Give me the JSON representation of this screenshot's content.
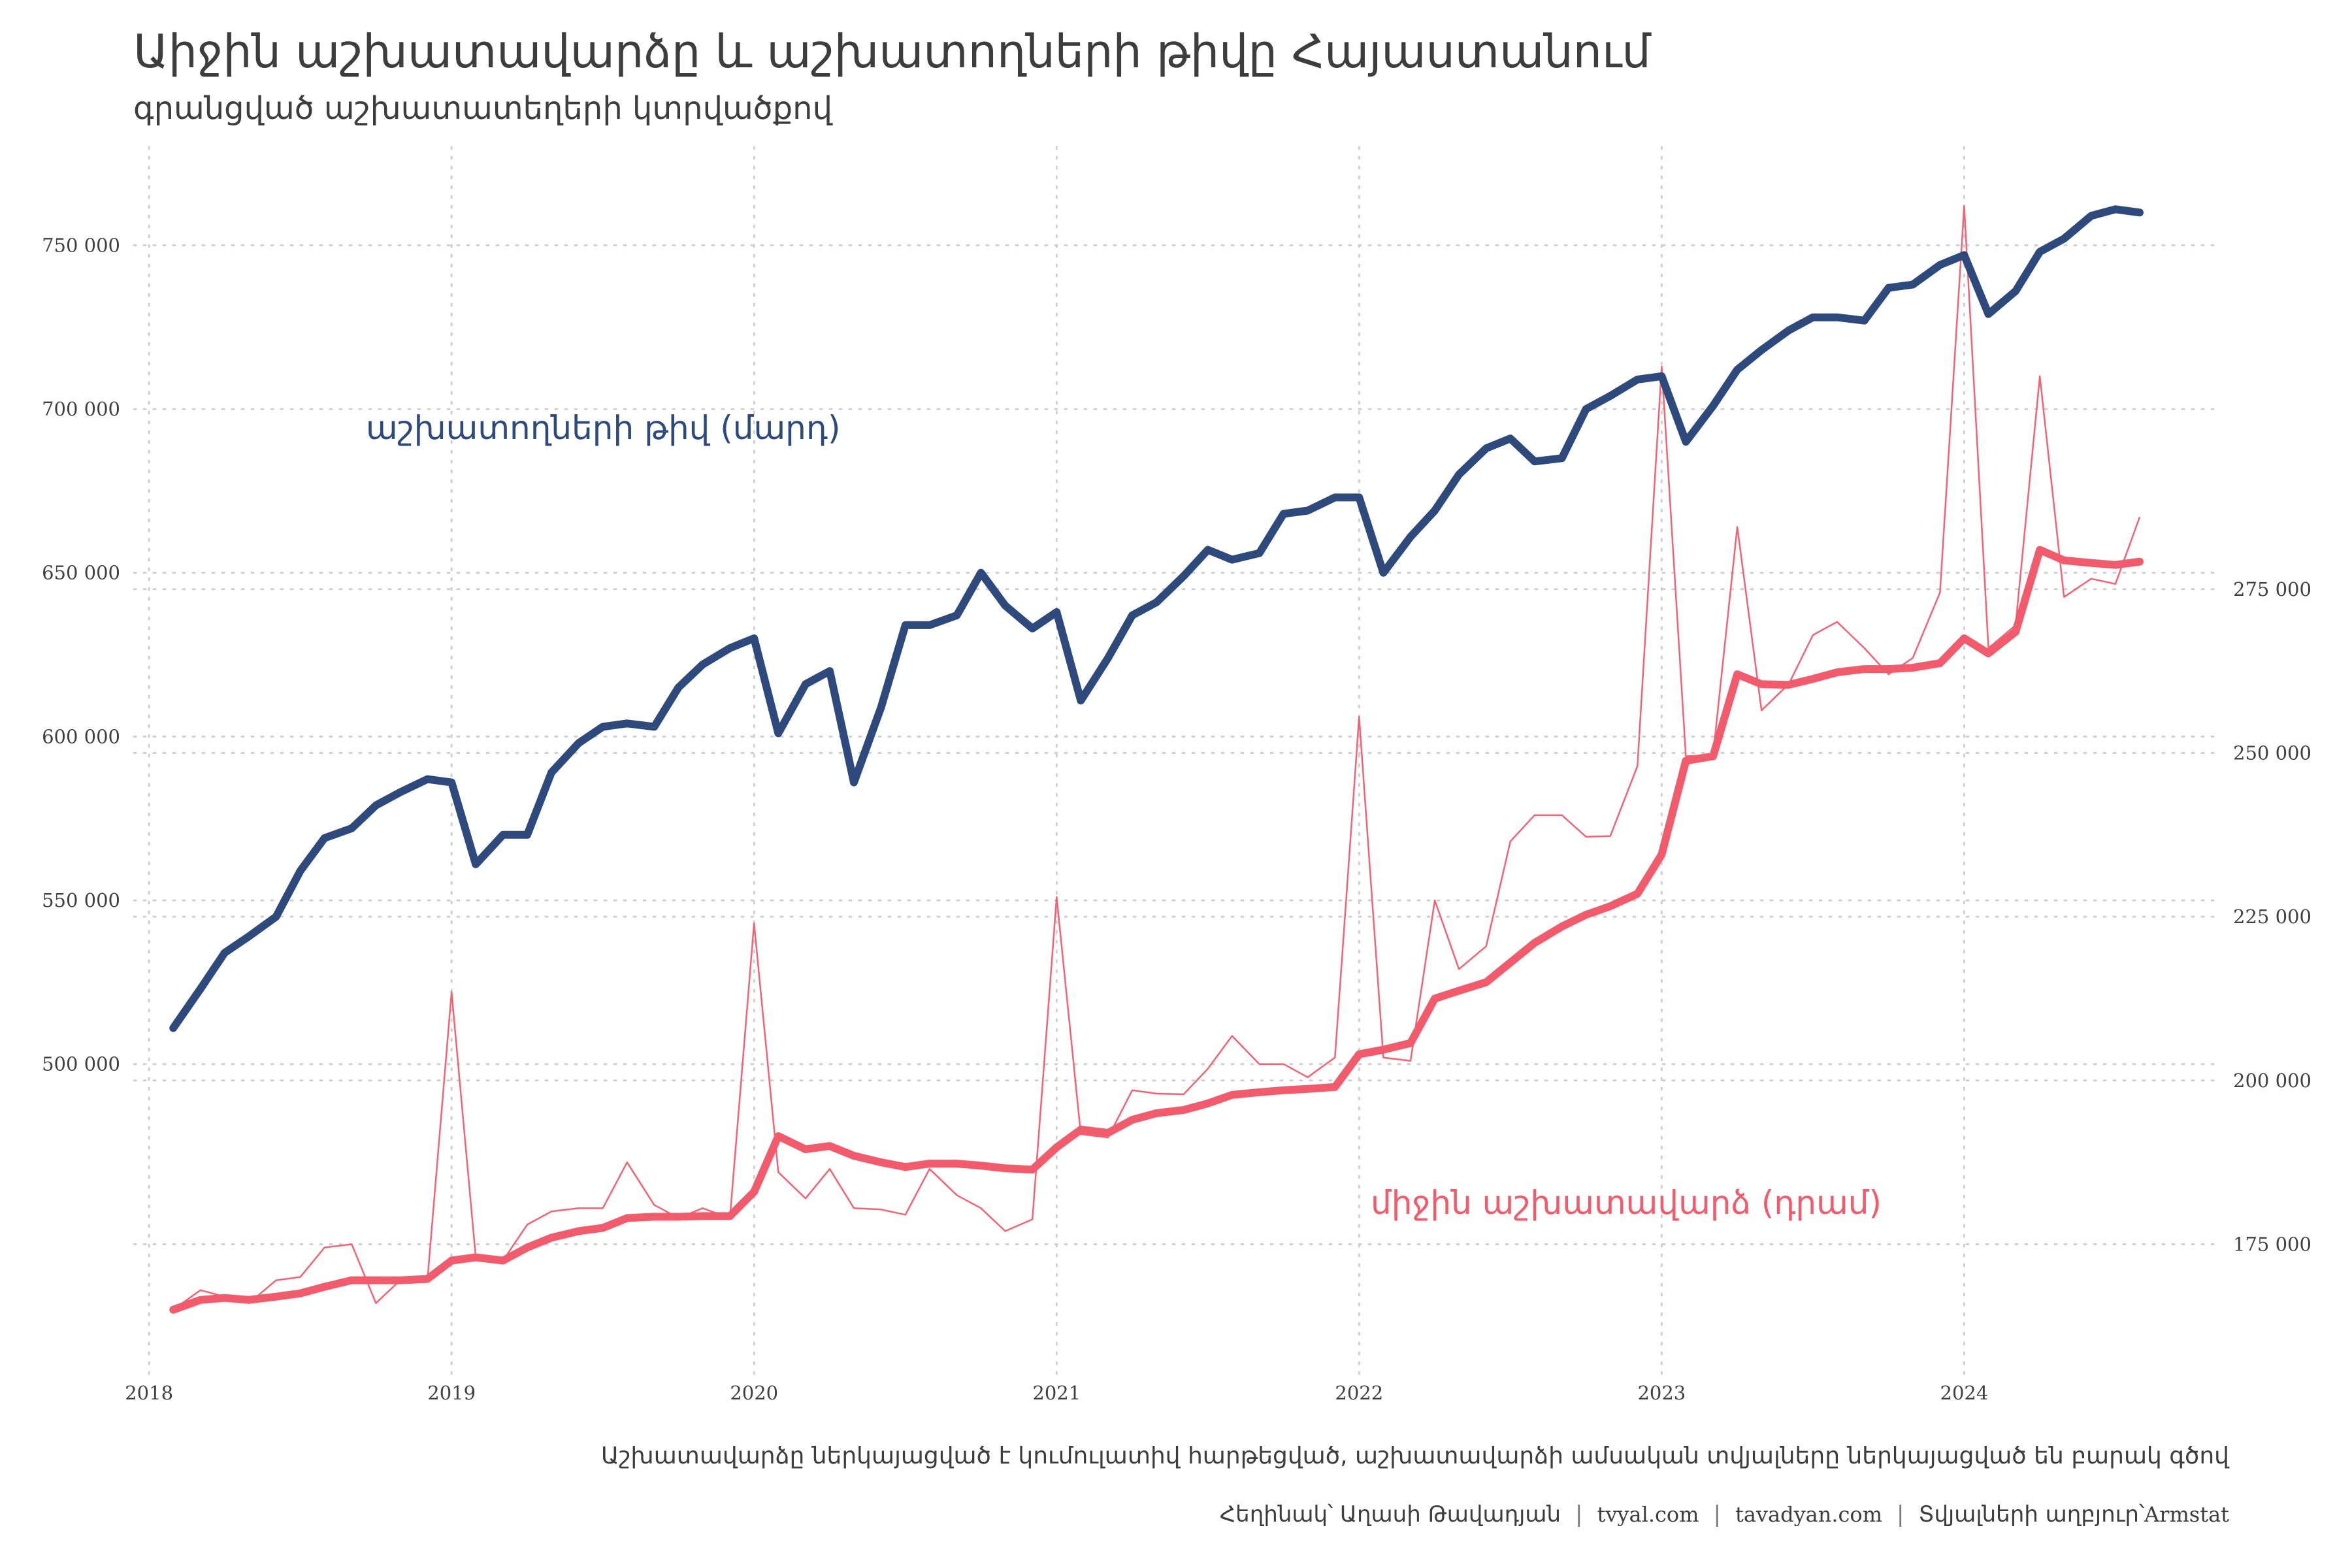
{
  "title": "Աիջին աշխատավարձը և աշխատողների թիվը Հայաստանում",
  "subtitle": "գրանցված աշխատատեղերի կտրվածքով",
  "caption": "Աշխատավարձը ներկայացված է կումուլատիվ հարթեցված, աշխատավարձի ամսական տվյալները ներկայացված են բարակ գծով",
  "credits": {
    "author": "Հեղինակ՝ Աղասի Թավադյան",
    "site1": "tvyal.com",
    "site2": "tavadyan.com",
    "source_label": "Տվյալների աղբյուր՝",
    "source_name": "Armstat",
    "separator": "|"
  },
  "colors": {
    "employees": "#2e4a7d",
    "wage": "#f25b6b",
    "grid": "#cfcfcf",
    "text": "#3d3d3d"
  },
  "chart_data": {
    "type": "line",
    "x_unit": "year (monthly observations)",
    "x_ticks": [
      "2018",
      "2019",
      "2020",
      "2021",
      "2022",
      "2023",
      "2024"
    ],
    "xlim": [
      2017.95,
      2024.85
    ],
    "y_left": {
      "ticks": [
        "500 000",
        "550 000",
        "600 000",
        "650 000",
        "700 000",
        "750 000"
      ],
      "tick_values": [
        500000,
        550000,
        600000,
        650000,
        700000,
        750000
      ],
      "lim": [
        405000,
        780000
      ]
    },
    "y_right": {
      "ticks": [
        "175 000",
        "200 000",
        "225 000",
        "250 000",
        "275 000"
      ],
      "tick_values": [
        175000,
        200000,
        225000,
        250000,
        275000
      ],
      "lim": [
        155000,
        342500
      ]
    },
    "grid": true,
    "legend": "direct labels",
    "series": [
      {
        "name": "աշխատողների թիվ (մարդ)",
        "axis": "left",
        "style": "thick",
        "x": [
          2018.08,
          2018.17,
          2018.25,
          2018.33,
          2018.42,
          2018.5,
          2018.58,
          2018.67,
          2018.75,
          2018.83,
          2018.92,
          2019.0,
          2019.08,
          2019.17,
          2019.25,
          2019.33,
          2019.42,
          2019.5,
          2019.58,
          2019.67,
          2019.75,
          2019.83,
          2019.92,
          2020.0,
          2020.08,
          2020.17,
          2020.25,
          2020.33,
          2020.42,
          2020.5,
          2020.58,
          2020.67,
          2020.75,
          2020.83,
          2020.92,
          2021.0,
          2021.08,
          2021.17,
          2021.25,
          2021.33,
          2021.42,
          2021.5,
          2021.58,
          2021.67,
          2021.75,
          2021.83,
          2021.92,
          2022.0,
          2022.08,
          2022.17,
          2022.25,
          2022.33,
          2022.42,
          2022.5,
          2022.58,
          2022.67,
          2022.75,
          2022.83,
          2022.92,
          2023.0,
          2023.08,
          2023.17,
          2023.25,
          2023.33,
          2023.42,
          2023.5,
          2023.58,
          2023.67,
          2023.75,
          2023.83,
          2023.92,
          2024.0,
          2024.08,
          2024.17,
          2024.25,
          2024.33,
          2024.42,
          2024.5,
          2024.58
        ],
        "values": [
          511000,
          523000,
          534000,
          539000,
          545000,
          559000,
          569000,
          572000,
          579000,
          583000,
          587000,
          586000,
          561000,
          570000,
          570000,
          589000,
          598000,
          603000,
          604000,
          603000,
          615000,
          622000,
          627000,
          630000,
          601000,
          616000,
          620000,
          586000,
          609000,
          634000,
          634000,
          637000,
          650000,
          640000,
          633000,
          638000,
          611000,
          624000,
          637000,
          641000,
          649000,
          657000,
          654000,
          656000,
          668000,
          669000,
          673000,
          673000,
          650000,
          661000,
          669000,
          680000,
          688000,
          691000,
          684000,
          685000,
          700000,
          704000,
          709000,
          710000,
          690000,
          701000,
          712000,
          718000,
          724000,
          728000,
          728000,
          727000,
          737000,
          738000,
          744000,
          747000,
          729000,
          736000,
          748000,
          752000,
          759000,
          761000,
          760000
        ]
      },
      {
        "name": "միջին աշխատավարձ (դրամ)",
        "axis": "right",
        "style": "thick, cumulative smoothed",
        "x": [
          2018.08,
          2018.17,
          2018.25,
          2018.33,
          2018.42,
          2018.5,
          2018.58,
          2018.67,
          2018.75,
          2018.83,
          2018.92,
          2019.0,
          2019.08,
          2019.17,
          2019.25,
          2019.33,
          2019.42,
          2019.5,
          2019.58,
          2019.67,
          2019.75,
          2019.83,
          2019.92,
          2020.0,
          2020.08,
          2020.17,
          2020.25,
          2020.33,
          2020.42,
          2020.5,
          2020.58,
          2020.67,
          2020.75,
          2020.83,
          2020.92,
          2021.0,
          2021.08,
          2021.17,
          2021.25,
          2021.33,
          2021.42,
          2021.5,
          2021.58,
          2021.67,
          2021.75,
          2021.83,
          2021.92,
          2022.0,
          2022.08,
          2022.17,
          2022.25,
          2022.33,
          2022.42,
          2022.5,
          2022.58,
          2022.67,
          2022.75,
          2022.83,
          2022.92,
          2023.0,
          2023.08,
          2023.17,
          2023.25,
          2023.33,
          2023.42,
          2023.5,
          2023.58,
          2023.67,
          2023.75,
          2023.83,
          2023.92,
          2024.0,
          2024.08,
          2024.17,
          2024.25,
          2024.33,
          2024.42,
          2024.5,
          2024.58
        ],
        "values": [
          165000,
          166500,
          166800,
          166500,
          167000,
          167500,
          168500,
          169500,
          169500,
          169500,
          169700,
          172500,
          173000,
          172500,
          174500,
          176000,
          177000,
          177500,
          179000,
          179200,
          179200,
          179300,
          179300,
          183000,
          191500,
          189500,
          190000,
          188500,
          187500,
          186800,
          187300,
          187300,
          187000,
          186600,
          186400,
          189800,
          192500,
          192000,
          194000,
          195000,
          195500,
          196500,
          197800,
          198200,
          198500,
          198700,
          199000,
          204000,
          204700,
          205700,
          212500,
          213700,
          215000,
          218000,
          221000,
          223500,
          225300,
          226600,
          228500,
          234500,
          248800,
          249500,
          262000,
          260500,
          260400,
          261300,
          262300,
          262800,
          262800,
          263000,
          263700,
          267500,
          265200,
          268500,
          281000,
          279400,
          279000,
          278700,
          279200
        ]
      },
      {
        "name": "",
        "axis": "right",
        "style": "thin, monthly",
        "x": [
          2018.08,
          2018.17,
          2018.25,
          2018.33,
          2018.42,
          2018.5,
          2018.58,
          2018.67,
          2018.75,
          2018.83,
          2018.92,
          2019.0,
          2019.08,
          2019.17,
          2019.25,
          2019.33,
          2019.42,
          2019.5,
          2019.58,
          2019.67,
          2019.75,
          2019.83,
          2019.92,
          2020.0,
          2020.08,
          2020.17,
          2020.25,
          2020.33,
          2020.42,
          2020.5,
          2020.58,
          2020.67,
          2020.75,
          2020.83,
          2020.92,
          2021.0,
          2021.08,
          2021.17,
          2021.25,
          2021.33,
          2021.42,
          2021.5,
          2021.58,
          2021.67,
          2021.75,
          2021.83,
          2021.92,
          2022.0,
          2022.08,
          2022.17,
          2022.25,
          2022.33,
          2022.42,
          2022.5,
          2022.58,
          2022.67,
          2022.75,
          2022.83,
          2022.92,
          2023.0,
          2023.08,
          2023.17,
          2023.25,
          2023.33,
          2023.42,
          2023.5,
          2023.58,
          2023.67,
          2023.75,
          2023.83,
          2023.92,
          2024.0,
          2024.08,
          2024.17,
          2024.25,
          2024.33,
          2024.42,
          2024.5,
          2024.58
        ],
        "values": [
          165000,
          168000,
          167000,
          166000,
          169500,
          170000,
          174500,
          175000,
          166000,
          169500,
          169500,
          213500,
          173000,
          172500,
          178000,
          180000,
          180500,
          180500,
          187500,
          181000,
          179000,
          180500,
          179000,
          224000,
          186000,
          182000,
          186500,
          180500,
          180300,
          179500,
          186500,
          182500,
          180500,
          177000,
          178800,
          228000,
          191800,
          191300,
          198500,
          198000,
          197900,
          201800,
          206800,
          202500,
          202500,
          200500,
          203500,
          255500,
          203500,
          203000,
          227500,
          217000,
          220500,
          236500,
          240500,
          240500,
          237200,
          237300,
          248000,
          309000,
          249500,
          249700,
          284500,
          256500,
          260500,
          268000,
          270000,
          266000,
          262000,
          264500,
          274500,
          333500,
          266000,
          269500,
          307500,
          273800,
          276600,
          275800,
          286000
        ]
      }
    ]
  }
}
